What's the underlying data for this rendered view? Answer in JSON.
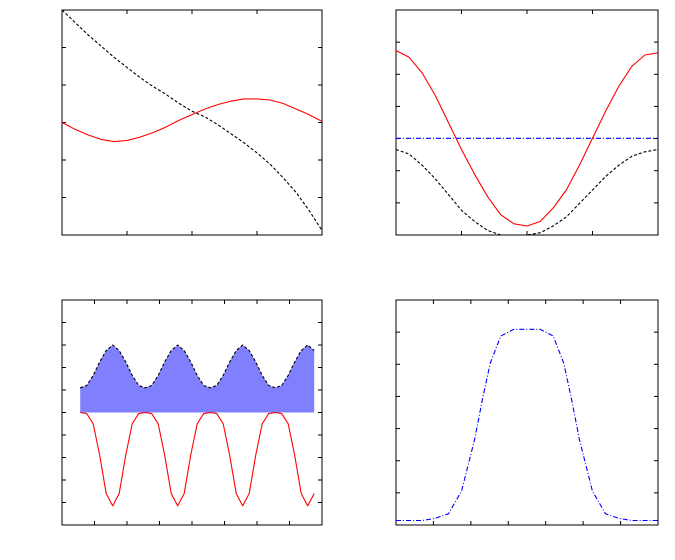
{
  "figure": {
    "layout": "2x2 grid",
    "background": "#ffffff"
  },
  "chart_data": [
    {
      "panel": "top-left",
      "type": "line",
      "title": "",
      "xlabel": "",
      "ylabel": "",
      "xlim": [
        0,
        1
      ],
      "ylim": [
        -1,
        1
      ],
      "grid": false,
      "x": [
        0,
        0.05,
        0.1,
        0.15,
        0.2,
        0.25,
        0.3,
        0.35,
        0.4,
        0.45,
        0.5,
        0.55,
        0.6,
        0.65,
        0.7,
        0.75,
        0.8,
        0.85,
        0.9,
        0.95,
        1
      ],
      "series": [
        {
          "style": "dashed",
          "color": "#000000",
          "values": [
            1.0,
            0.89,
            0.78,
            0.68,
            0.58,
            0.49,
            0.4,
            0.32,
            0.25,
            0.17,
            0.1,
            0.05,
            -0.02,
            -0.1,
            -0.18,
            -0.27,
            -0.37,
            -0.49,
            -0.62,
            -0.78,
            -0.96
          ]
        },
        {
          "style": "solid",
          "color": "#ff0000",
          "values": [
            0.0,
            -0.06,
            -0.11,
            -0.15,
            -0.17,
            -0.16,
            -0.13,
            -0.09,
            -0.04,
            0.02,
            0.07,
            0.12,
            0.16,
            0.19,
            0.21,
            0.21,
            0.2,
            0.17,
            0.12,
            0.07,
            0.01
          ]
        }
      ]
    },
    {
      "panel": "top-right",
      "type": "line",
      "title": "",
      "xlabel": "",
      "ylabel": "",
      "xlim": [
        0,
        1
      ],
      "ylim": [
        0,
        1
      ],
      "grid": false,
      "x": [
        0,
        0.05,
        0.1,
        0.15,
        0.2,
        0.25,
        0.3,
        0.35,
        0.4,
        0.45,
        0.5,
        0.55,
        0.6,
        0.65,
        0.7,
        0.75,
        0.8,
        0.85,
        0.9,
        0.95,
        1
      ],
      "series": [
        {
          "style": "solid",
          "color": "#ff0000",
          "values": [
            0.82,
            0.79,
            0.72,
            0.62,
            0.5,
            0.38,
            0.27,
            0.17,
            0.09,
            0.05,
            0.04,
            0.06,
            0.12,
            0.2,
            0.31,
            0.43,
            0.55,
            0.66,
            0.75,
            0.8,
            0.81
          ]
        },
        {
          "style": "dashed",
          "color": "#000000",
          "values": [
            0.38,
            0.36,
            0.31,
            0.25,
            0.18,
            0.11,
            0.06,
            0.02,
            0.0,
            0.0,
            0.0,
            0.01,
            0.04,
            0.08,
            0.14,
            0.2,
            0.26,
            0.31,
            0.35,
            0.37,
            0.38
          ]
        },
        {
          "style": "dashdot",
          "color": "#0000ff",
          "values": [
            0.43,
            0.43,
            0.43,
            0.43,
            0.43,
            0.43,
            0.43,
            0.43,
            0.43,
            0.43,
            0.43,
            0.43,
            0.43,
            0.43,
            0.43,
            0.43,
            0.43,
            0.43,
            0.43,
            0.43,
            0.43
          ]
        }
      ]
    },
    {
      "panel": "bottom-left",
      "type": "area",
      "title": "",
      "xlabel": "",
      "ylabel": "",
      "xlim": [
        0,
        1
      ],
      "ylim": [
        -1,
        1
      ],
      "grid": false,
      "x": [
        0.07,
        0.095,
        0.12,
        0.145,
        0.17,
        0.195,
        0.22,
        0.245,
        0.27,
        0.295,
        0.32,
        0.345,
        0.37,
        0.395,
        0.42,
        0.445,
        0.47,
        0.495,
        0.52,
        0.545,
        0.57,
        0.595,
        0.62,
        0.645,
        0.67,
        0.695,
        0.72,
        0.745,
        0.77,
        0.795,
        0.82,
        0.845,
        0.87,
        0.895,
        0.92,
        0.945,
        0.97
      ],
      "series": [
        {
          "name": "",
          "style": "dashed-filled",
          "color": "#000000",
          "fill": "#8080ff",
          "values": [
            0.22,
            0.24,
            0.33,
            0.45,
            0.55,
            0.6,
            0.55,
            0.45,
            0.33,
            0.24,
            0.22,
            0.24,
            0.33,
            0.45,
            0.55,
            0.6,
            0.55,
            0.45,
            0.33,
            0.24,
            0.22,
            0.24,
            0.33,
            0.45,
            0.55,
            0.6,
            0.55,
            0.45,
            0.33,
            0.24,
            0.22,
            0.24,
            0.33,
            0.45,
            0.55,
            0.6,
            0.55
          ]
        },
        {
          "name": "",
          "style": "solid",
          "color": "#ff0000",
          "values": [
            0.0,
            -0.01,
            -0.1,
            -0.38,
            -0.72,
            -0.83,
            -0.72,
            -0.38,
            -0.1,
            -0.01,
            0.0,
            -0.01,
            -0.1,
            -0.38,
            -0.72,
            -0.83,
            -0.72,
            -0.38,
            -0.1,
            -0.01,
            0.0,
            -0.01,
            -0.1,
            -0.38,
            -0.72,
            -0.83,
            -0.72,
            -0.38,
            -0.1,
            -0.01,
            0.0,
            -0.01,
            -0.1,
            -0.38,
            -0.72,
            -0.83,
            -0.72
          ]
        }
      ],
      "baseline": 0
    },
    {
      "panel": "bottom-right",
      "type": "line",
      "title": "",
      "xlabel": "",
      "ylabel": "",
      "xlim": [
        0,
        1
      ],
      "ylim": [
        0,
        1
      ],
      "grid": false,
      "x": [
        0,
        0.05,
        0.1,
        0.15,
        0.2,
        0.25,
        0.3,
        0.33,
        0.36,
        0.4,
        0.45,
        0.5,
        0.55,
        0.6,
        0.64,
        0.67,
        0.7,
        0.75,
        0.8,
        0.85,
        0.9,
        0.95,
        1
      ],
      "series": [
        {
          "style": "dashdot",
          "color": "#0000ff",
          "values": [
            0.02,
            0.02,
            0.02,
            0.03,
            0.05,
            0.15,
            0.38,
            0.56,
            0.72,
            0.84,
            0.87,
            0.87,
            0.87,
            0.84,
            0.72,
            0.56,
            0.38,
            0.15,
            0.05,
            0.03,
            0.02,
            0.02,
            0.02
          ]
        }
      ]
    }
  ]
}
